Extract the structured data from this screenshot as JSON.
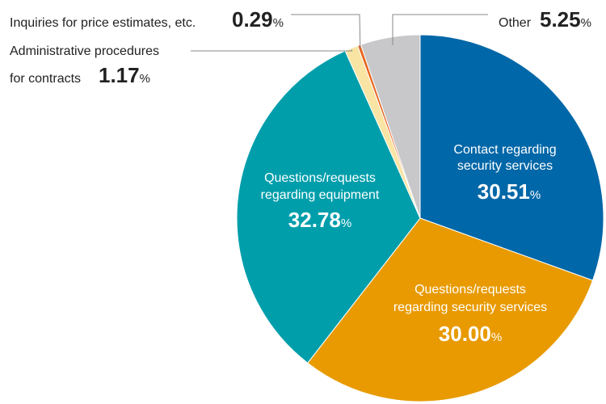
{
  "chart_data": {
    "type": "pie",
    "slices": [
      {
        "label": "Contact regarding security services",
        "label_lines": [
          "Contact regarding",
          "security services"
        ],
        "value": 30.51,
        "color": "#0067A8"
      },
      {
        "label": "Questions/requests regarding security services",
        "label_lines": [
          "Questions/requests",
          "regarding security services"
        ],
        "value": 30.0,
        "color": "#E89A00"
      },
      {
        "label": "Questions/requests regarding equipment",
        "label_lines": [
          "Questions/requests",
          "regarding equipment"
        ],
        "value": 32.78,
        "color": "#009EAB"
      },
      {
        "label": "Administrative procedures for contracts",
        "label_lines": [
          "Administrative procedures",
          "for contracts"
        ],
        "value": 1.17,
        "color": "#F9E4A4"
      },
      {
        "label": "Inquiries for price estimates, etc.",
        "label_lines": [
          "Inquiries for price estimates, etc."
        ],
        "value": 0.29,
        "color": "#E8641E"
      },
      {
        "label": "Other",
        "label_lines": [
          "Other"
        ],
        "value": 5.25,
        "color": "#C8C8CA"
      }
    ],
    "value_display": [
      "30.51",
      "30.00",
      "32.78",
      "1.17",
      "0.29",
      "5.25"
    ],
    "unit": "%",
    "start": "12 o'clock",
    "direction": "clockwise"
  }
}
